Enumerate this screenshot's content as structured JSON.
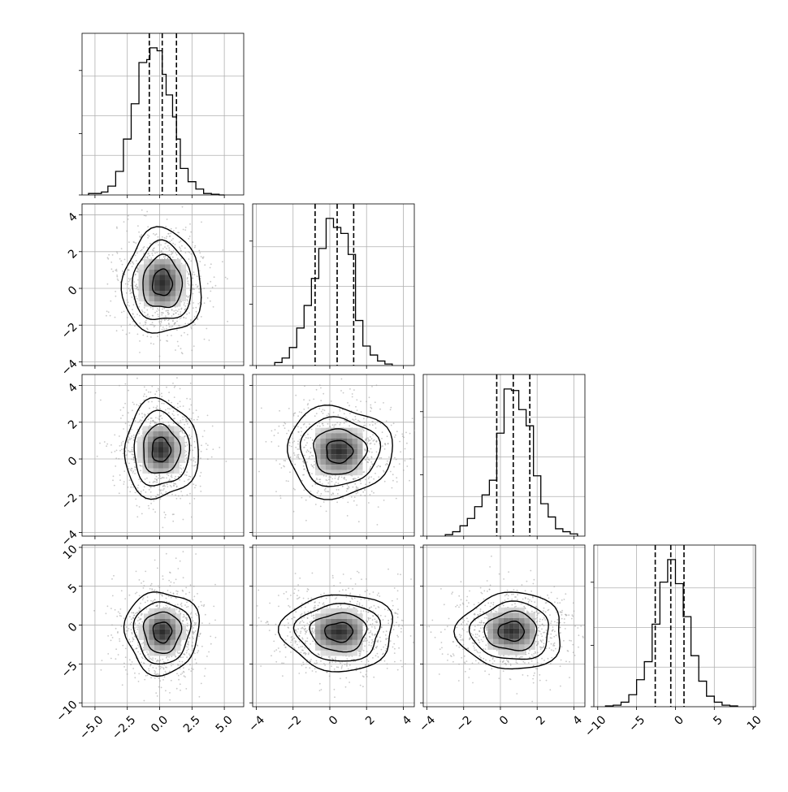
{
  "chart_data": {
    "type": "corner",
    "grid": true,
    "ticks": {
      "v0": {
        "values": [
          -5.0,
          -2.5,
          0.0,
          2.5,
          5.0
        ],
        "labels": [
          "−5.0",
          "−2.5",
          "0.0",
          "2.5",
          "5.0"
        ]
      },
      "v1": {
        "values": [
          -4,
          -2,
          0,
          2,
          4
        ],
        "labels": [
          "−4",
          "−2",
          "0",
          "2",
          "4"
        ]
      },
      "v2": {
        "values": [
          -4,
          -2,
          0,
          2,
          4
        ],
        "labels": [
          "−4",
          "−2",
          "0",
          "2",
          "4"
        ]
      },
      "v3": {
        "values": [
          -10,
          -5,
          0,
          5,
          10
        ],
        "labels": [
          "−10",
          "−5",
          "0",
          "5",
          "10"
        ]
      }
    },
    "variables": [
      {
        "range": [
          -6.0,
          6.5
        ],
        "quantiles": [
          -0.8,
          0.2,
          1.3
        ],
        "hist_bins": [
          -5.5,
          -4.5,
          -4.0,
          -3.4,
          -2.8,
          -2.2,
          -1.6,
          -1.0,
          -0.75,
          -0.2,
          0.2,
          0.5,
          1.0,
          1.3,
          1.6,
          2.2,
          2.8,
          3.4,
          4.0,
          4.6,
          5.0
        ],
        "hist_counts": [
          0.01,
          0.02,
          0.06,
          0.16,
          0.38,
          0.62,
          0.9,
          0.92,
          1.0,
          0.98,
          0.82,
          0.68,
          0.53,
          0.38,
          0.18,
          0.09,
          0.04,
          0.01,
          0.005,
          0.0
        ]
      },
      {
        "range": [
          -4.2,
          4.6
        ],
        "quantiles": [
          -0.8,
          0.4,
          1.3
        ],
        "hist_bins": [
          -3.0,
          -2.6,
          -2.2,
          -1.8,
          -1.4,
          -1.0,
          -0.6,
          -0.2,
          0.2,
          0.6,
          1.0,
          1.4,
          1.8,
          2.2,
          2.6,
          3.0,
          3.4
        ],
        "hist_counts": [
          0.02,
          0.05,
          0.12,
          0.25,
          0.4,
          0.58,
          0.78,
          0.98,
          0.92,
          0.88,
          0.74,
          0.3,
          0.13,
          0.07,
          0.03,
          0.01
        ]
      },
      {
        "range": [
          -4.2,
          4.6
        ],
        "quantiles": [
          -0.2,
          0.7,
          1.6
        ],
        "hist_bins": [
          -3.0,
          -2.6,
          -2.2,
          -1.8,
          -1.4,
          -1.0,
          -0.6,
          -0.2,
          0.2,
          0.6,
          1.0,
          1.4,
          1.8,
          2.2,
          2.6,
          3.0,
          3.4,
          3.8,
          4.2
        ],
        "hist_counts": [
          0.01,
          0.03,
          0.07,
          0.12,
          0.2,
          0.28,
          0.38,
          0.7,
          1.0,
          0.99,
          0.86,
          0.75,
          0.41,
          0.22,
          0.13,
          0.05,
          0.03,
          0.015
        ]
      },
      {
        "range": [
          -10.5,
          10.3
        ],
        "quantiles": [
          -2.6,
          -0.6,
          1.1
        ],
        "hist_bins": [
          -9.0,
          -8.0,
          -7.0,
          -6.0,
          -5.0,
          -4.0,
          -3.0,
          -2.0,
          -1.0,
          0.0,
          1.0,
          2.0,
          3.0,
          4.0,
          5.0,
          6.0,
          7.0,
          8.0
        ],
        "hist_counts": [
          0.005,
          0.01,
          0.03,
          0.08,
          0.18,
          0.3,
          0.55,
          0.83,
          0.98,
          0.82,
          0.6,
          0.34,
          0.17,
          0.07,
          0.03,
          0.01,
          0.005
        ]
      }
    ],
    "pairs": [
      {
        "row": 1,
        "col": 0,
        "center": [
          0.2,
          0.3
        ],
        "sigma": [
          1.6,
          1.5
        ]
      },
      {
        "row": 2,
        "col": 0,
        "center": [
          0.1,
          0.5
        ],
        "sigma": [
          1.5,
          1.4
        ]
      },
      {
        "row": 2,
        "col": 1,
        "center": [
          0.5,
          0.4
        ],
        "sigma": [
          1.5,
          1.3
        ]
      },
      {
        "row": 3,
        "col": 0,
        "center": [
          0.2,
          -0.9
        ],
        "sigma": [
          1.5,
          2.8
        ]
      },
      {
        "row": 3,
        "col": 1,
        "center": [
          0.5,
          -0.9
        ],
        "sigma": [
          1.6,
          2.6
        ]
      },
      {
        "row": 3,
        "col": 2,
        "center": [
          0.6,
          -0.8
        ],
        "sigma": [
          1.5,
          2.6
        ]
      }
    ],
    "contour_levels": [
      0.5,
      1.0,
      1.5,
      2.0
    ]
  }
}
